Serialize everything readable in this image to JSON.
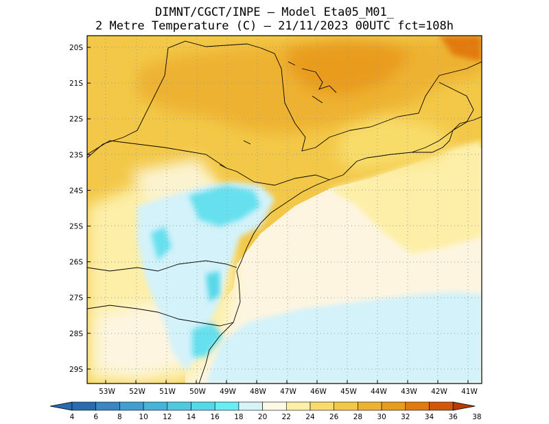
{
  "header": {
    "line1": "DIMNT/CGCT/INPE –  Model Eta05_M01_",
    "line2": "2 Metre Temperature (C) –  21/11/2023 00UTC fct=108h"
  },
  "map": {
    "lat_labels": [
      "20S",
      "21S",
      "22S",
      "23S",
      "24S",
      "25S",
      "26S",
      "27S",
      "28S",
      "29S"
    ],
    "lon_labels": [
      "53W",
      "52W",
      "51W",
      "50W",
      "49W",
      "48W",
      "47W",
      "46W",
      "45W",
      "44W",
      "43W",
      "42W",
      "41W"
    ]
  },
  "colorbar": {
    "labels": [
      "4",
      "6",
      "8",
      "10",
      "12",
      "14",
      "16",
      "18",
      "20",
      "22",
      "24",
      "26",
      "28",
      "30",
      "32",
      "34",
      "36",
      "38"
    ],
    "colors": [
      "#2a6bb0",
      "#3a86c0",
      "#3f9fcf",
      "#46b4d8",
      "#4fc8e0",
      "#55d8e8",
      "#66eef2",
      "#d6f4f8",
      "#fdf7e6",
      "#fdefa8",
      "#f8dc6a",
      "#f3c848",
      "#eeb232",
      "#e99b1e",
      "#e27a10",
      "#d25808",
      "#b83a04"
    ]
  }
}
